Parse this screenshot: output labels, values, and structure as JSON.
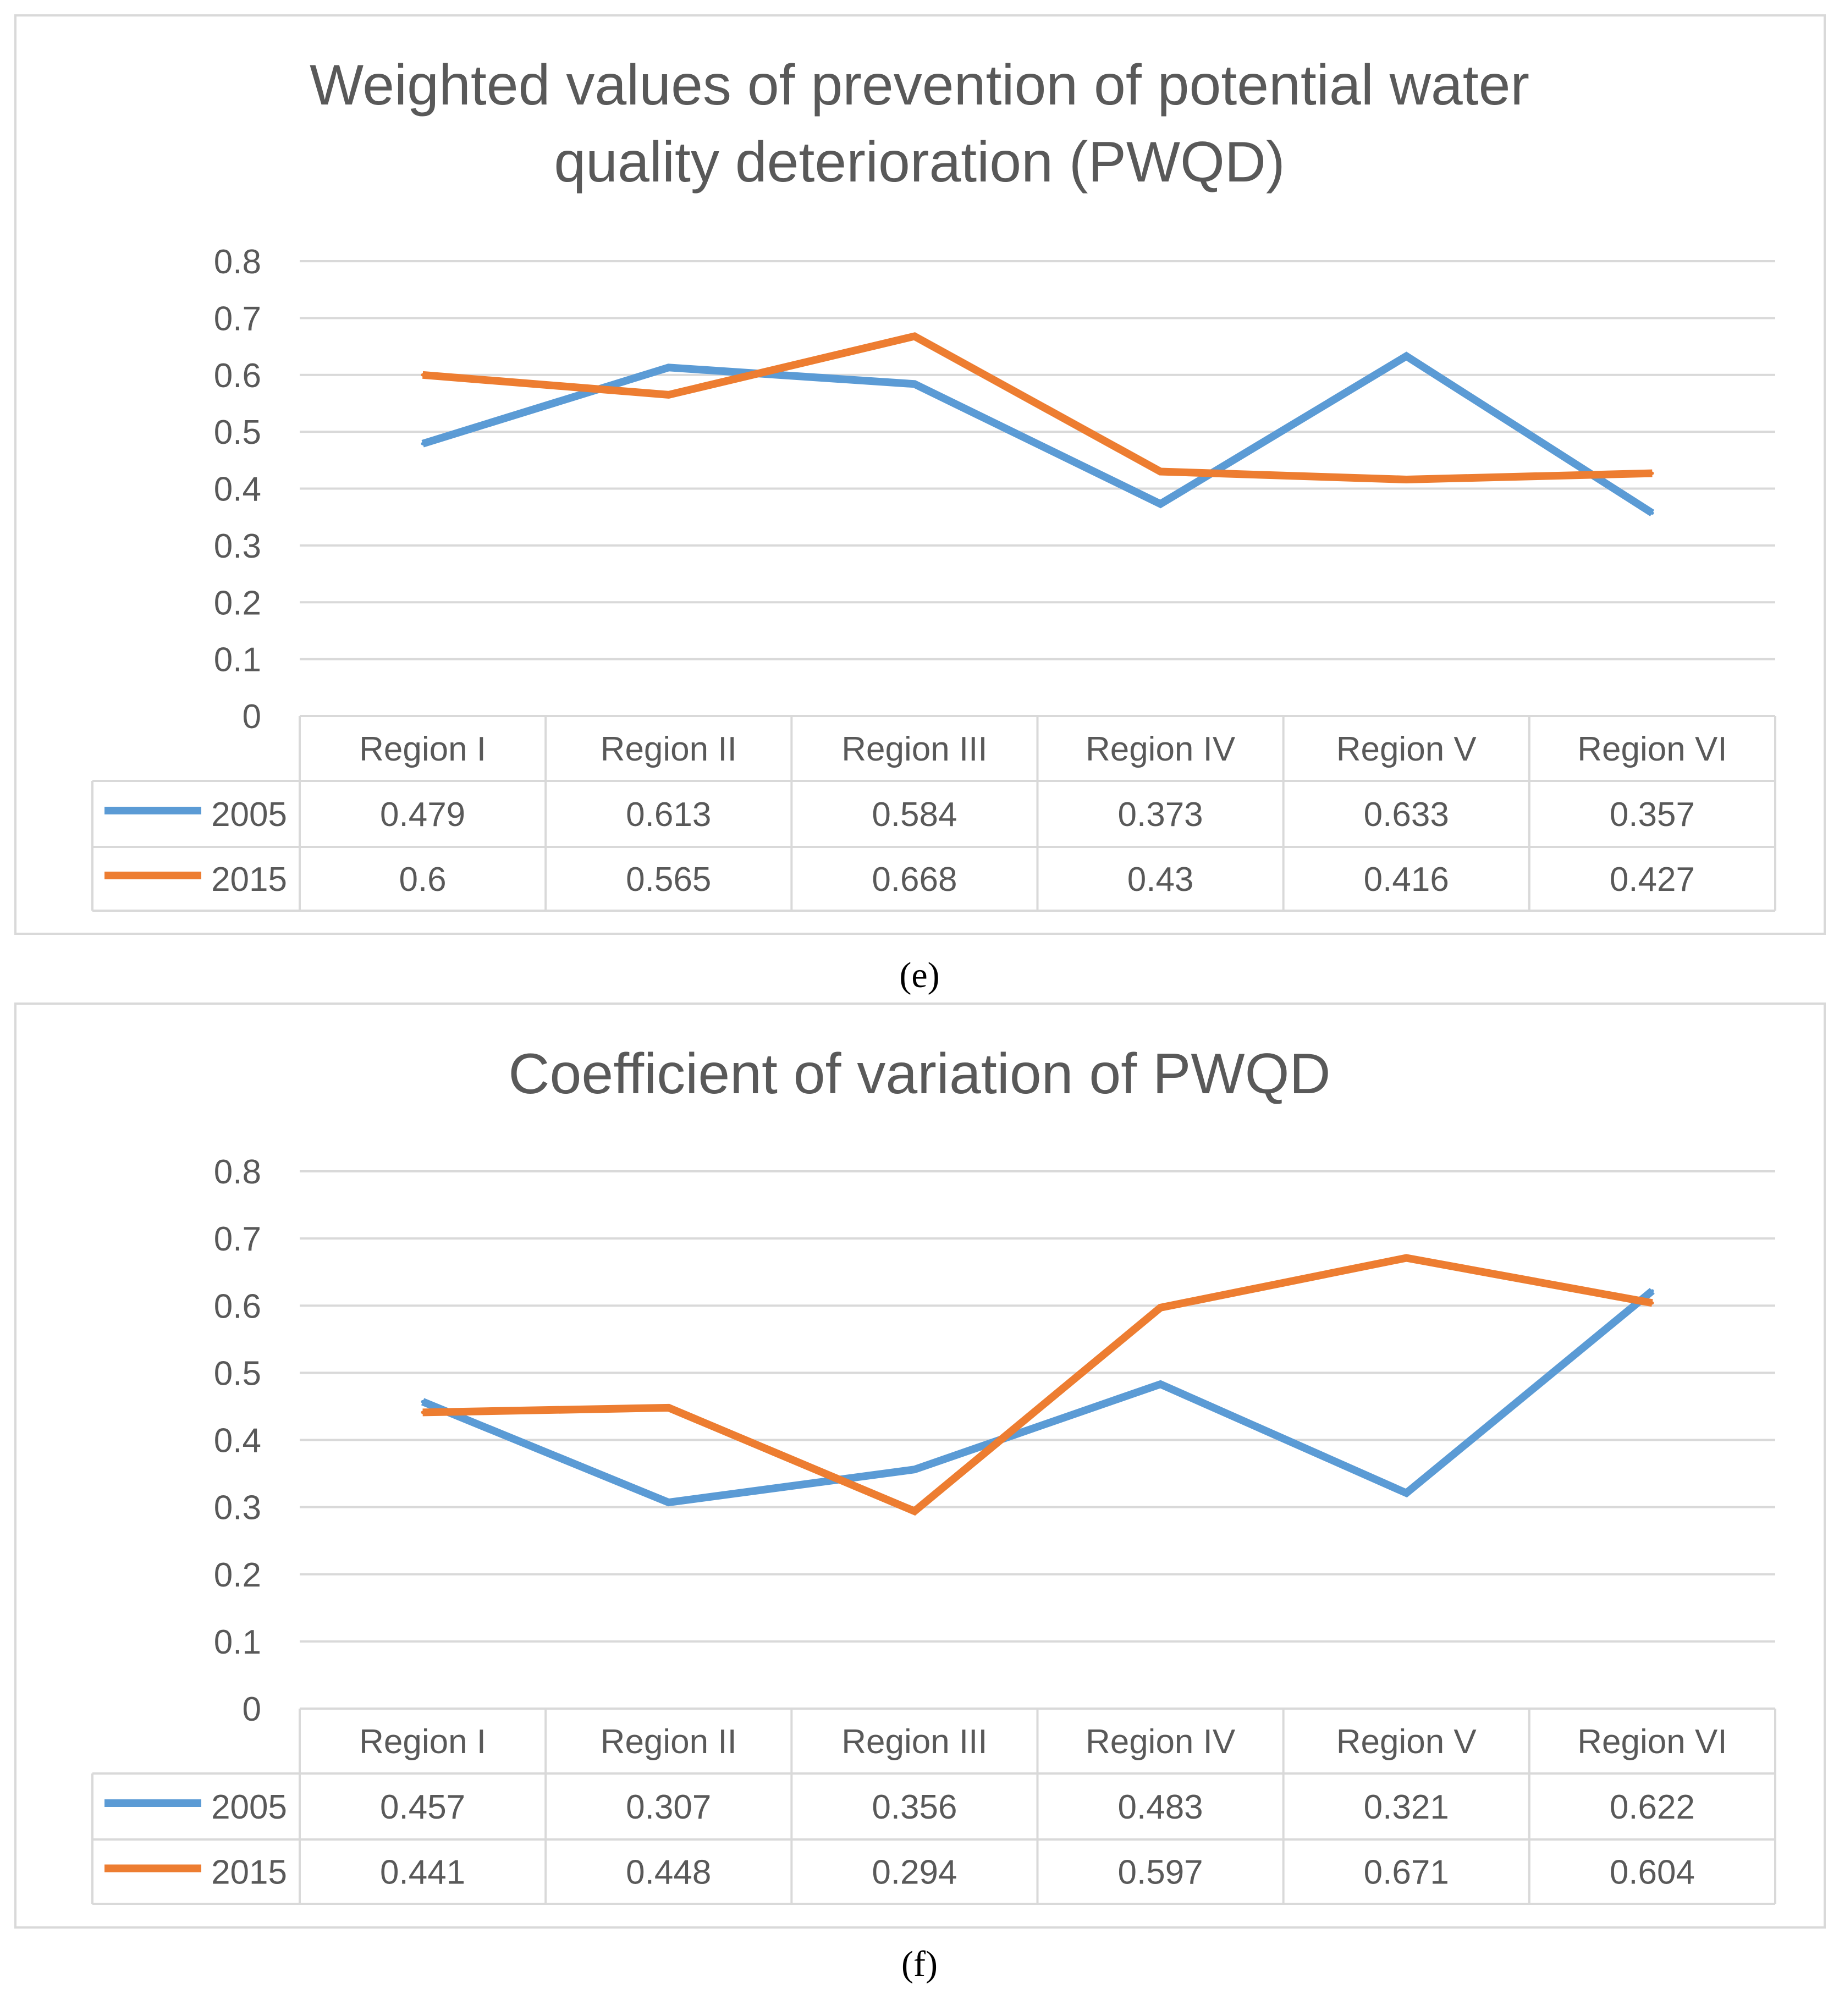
{
  "colors": {
    "series_2005": "#5b9bd5",
    "series_2015": "#ed7d31",
    "text": "#595959",
    "grid": "#d9d9d9"
  },
  "chart_data": [
    {
      "type": "line",
      "title": "Weighted values of prevention of potential water quality deterioration (PWQD)",
      "title_lines": [
        "Weighted values of prevention of potential water",
        "quality deterioration (PWQD)"
      ],
      "caption": "(e)",
      "caption_letter": "e",
      "categories": [
        "Region I",
        "Region II",
        "Region III",
        "Region IV",
        "Region V",
        "Region VI"
      ],
      "series": [
        {
          "name": "2005",
          "color": "#5b9bd5",
          "values": [
            0.479,
            0.613,
            0.584,
            0.373,
            0.633,
            0.357
          ],
          "labels": [
            "0.479",
            "0.613",
            "0.584",
            "0.373",
            "0.633",
            "0.357"
          ]
        },
        {
          "name": "2015",
          "color": "#ed7d31",
          "values": [
            0.6,
            0.565,
            0.668,
            0.43,
            0.416,
            0.427
          ],
          "labels": [
            "0.6",
            "0.565",
            "0.668",
            "0.43",
            "0.416",
            "0.427"
          ]
        }
      ],
      "ylim": [
        0,
        0.8
      ],
      "yticks": [
        "0",
        "0.1",
        "0.2",
        "0.3",
        "0.4",
        "0.5",
        "0.6",
        "0.7",
        "0.8"
      ],
      "grid": true,
      "legend": "data table with legend keys below plot"
    },
    {
      "type": "line",
      "title": "Coefficient of variation of PWQD",
      "title_lines": [
        "Coefficient of variation of PWQD"
      ],
      "caption": "(f)",
      "caption_letter": "f",
      "categories": [
        "Region I",
        "Region II",
        "Region III",
        "Region IV",
        "Region V",
        "Region VI"
      ],
      "series": [
        {
          "name": "2005",
          "color": "#5b9bd5",
          "values": [
            0.457,
            0.307,
            0.356,
            0.483,
            0.321,
            0.622
          ],
          "labels": [
            "0.457",
            "0.307",
            "0.356",
            "0.483",
            "0.321",
            "0.622"
          ]
        },
        {
          "name": "2015",
          "color": "#ed7d31",
          "values": [
            0.441,
            0.448,
            0.294,
            0.597,
            0.671,
            0.604
          ],
          "labels": [
            "0.441",
            "0.448",
            "0.294",
            "0.597",
            "0.671",
            "0.604"
          ]
        }
      ],
      "ylim": [
        0,
        0.8
      ],
      "yticks": [
        "0",
        "0.1",
        "0.2",
        "0.3",
        "0.4",
        "0.5",
        "0.6",
        "0.7",
        "0.8"
      ],
      "grid": true,
      "legend": "data table with legend keys below plot"
    }
  ]
}
